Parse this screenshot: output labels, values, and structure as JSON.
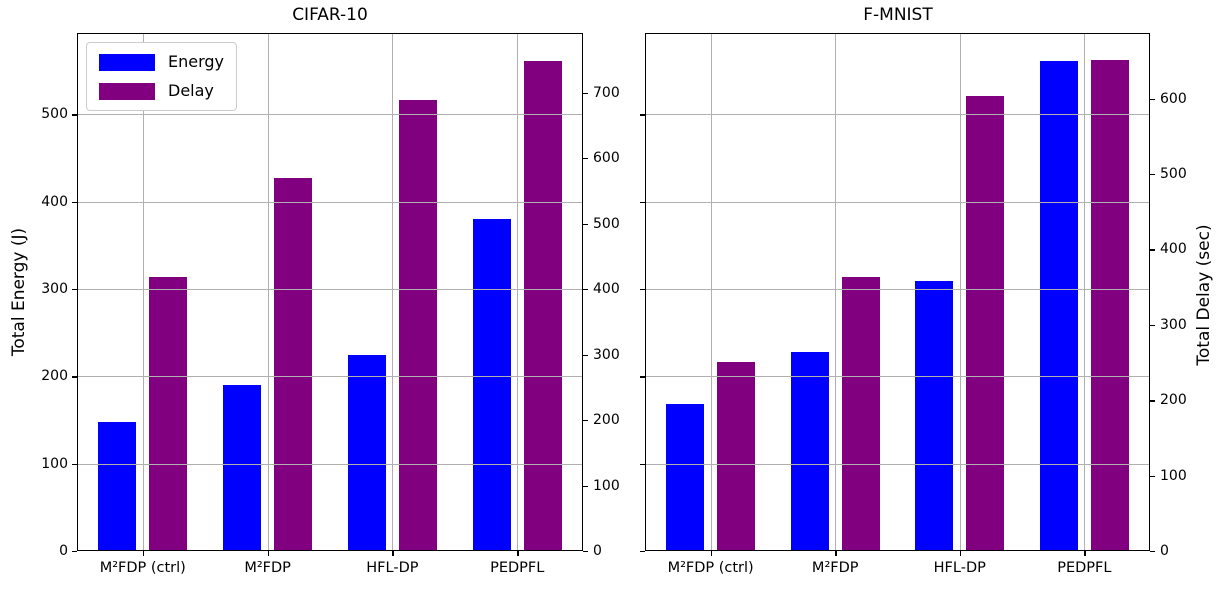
{
  "figure_title": "",
  "legend": {
    "items": [
      {
        "label": "Energy",
        "color": "#0000ff"
      },
      {
        "label": "Delay",
        "color": "#800080"
      }
    ]
  },
  "chart_data": [
    {
      "type": "bar",
      "title": "CIFAR-10",
      "categories": [
        "M²FDP (ctrl)",
        "M²FDP",
        "HFL-DP",
        "PEDPFL"
      ],
      "series": [
        {
          "name": "Energy",
          "axis": "left",
          "color": "#0000ff",
          "values": [
            148,
            190,
            224,
            380
          ]
        },
        {
          "name": "Delay",
          "axis": "right",
          "color": "#800080",
          "values": [
            418,
            569,
            688,
            749
          ]
        }
      ],
      "left_axis": {
        "label": "Total Energy (J)",
        "ticks": [
          0,
          100,
          200,
          300,
          400,
          500
        ],
        "lim": [
          0,
          593
        ],
        "show_tick_labels": true
      },
      "right_axis": {
        "label": "",
        "ticks": [
          0,
          100,
          200,
          300,
          400,
          500,
          600,
          700
        ],
        "lim": [
          0,
          791
        ],
        "show_tick_labels": true
      },
      "grid": true,
      "legend_position": "upper left",
      "show_legend": true
    },
    {
      "type": "bar",
      "title": "F-MNIST",
      "categories": [
        "M²FDP (ctrl)",
        "M²FDP",
        "HFL-DP",
        "PEDPFL"
      ],
      "series": [
        {
          "name": "Energy",
          "axis": "left",
          "color": "#0000ff",
          "values": [
            168,
            228,
            309,
            561
          ]
        },
        {
          "name": "Delay",
          "axis": "right",
          "color": "#800080",
          "values": [
            251,
            363,
            603,
            651
          ]
        }
      ],
      "left_axis": {
        "label": "",
        "ticks": [
          0,
          100,
          200,
          300,
          400,
          500
        ],
        "lim": [
          0,
          593
        ],
        "show_tick_labels": false
      },
      "right_axis": {
        "label": "Total Delay (sec)",
        "ticks": [
          0,
          100,
          200,
          300,
          400,
          500,
          600
        ],
        "lim": [
          0,
          687
        ],
        "show_tick_labels": true
      },
      "grid": true,
      "legend_position": "none",
      "show_legend": false
    }
  ]
}
